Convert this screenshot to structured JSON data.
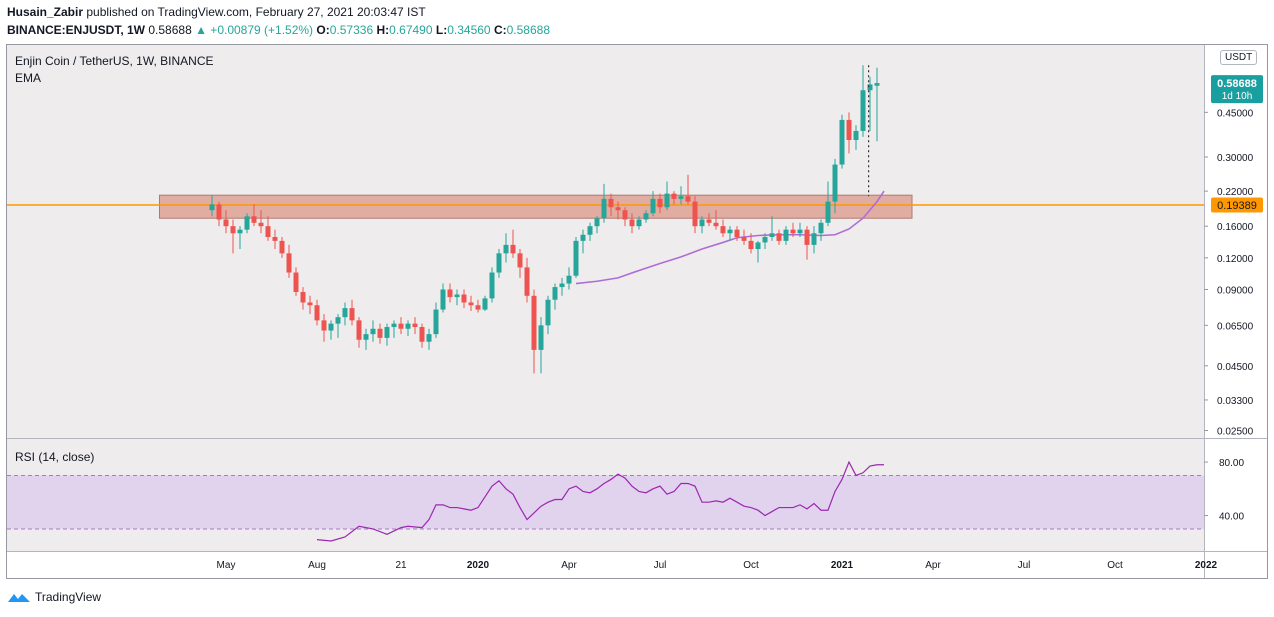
{
  "publisher": {
    "user": "Husain_Zabir",
    "text": "published on TradingView.com, February 27, 2021 20:03:47 IST"
  },
  "symbol_line": {
    "symbol": "BINANCE:ENJUSDT, 1W",
    "price": "0.58688",
    "change": "▲ +0.00879 (+1.52%)",
    "o_label": "O:",
    "o": "0.57336",
    "h_label": "H:",
    "h": "0.67490",
    "l_label": "L:",
    "l": "0.34560",
    "c_label": "C:",
    "c": "0.58688"
  },
  "legend": {
    "title": "Enjin Coin / TetherUS, 1W, BINANCE",
    "ema": "EMA",
    "rsi": "RSI (14, close)"
  },
  "currency_button": "USDT",
  "price_labels": {
    "last": "0.58688",
    "countdown": "1d 10h",
    "level": "0.19389"
  },
  "footer": {
    "brand": "TradingView"
  },
  "colors": {
    "up": "#26a69a",
    "down": "#ef5350",
    "ema": "#b06cd6",
    "rsi": "#9c27b0",
    "level": "#ff9800",
    "zone": "#d9826f",
    "rsi_band": "#e1d2ee",
    "last_price": "#1a9fa0"
  },
  "chart_data": {
    "type": "candlestick",
    "y_scale": "log",
    "ylim": [
      0.024,
      0.8
    ],
    "y_ticks": [
      {
        "value": 0.45,
        "label": "0.45000"
      },
      {
        "value": 0.3,
        "label": "0.30000"
      },
      {
        "value": 0.22,
        "label": "0.22000"
      },
      {
        "value": 0.16,
        "label": "0.16000"
      },
      {
        "value": 0.12,
        "label": "0.12000"
      },
      {
        "value": 0.09,
        "label": "0.09000"
      },
      {
        "value": 0.065,
        "label": "0.06500"
      },
      {
        "value": 0.045,
        "label": "0.04500"
      },
      {
        "value": 0.033,
        "label": "0.03300"
      },
      {
        "value": 0.025,
        "label": "0.02500"
      }
    ],
    "x_ticks": [
      {
        "week": 2,
        "label": "May"
      },
      {
        "week": 15,
        "label": "Aug"
      },
      {
        "week": 27,
        "label": "21"
      },
      {
        "week": 38,
        "label": "2020"
      },
      {
        "week": 51,
        "label": "Apr"
      },
      {
        "week": 64,
        "label": "Jul"
      },
      {
        "week": 77,
        "label": "Oct"
      },
      {
        "week": 90,
        "label": "2021"
      },
      {
        "week": 103,
        "label": "Apr"
      },
      {
        "week": 116,
        "label": "Jul"
      },
      {
        "week": 129,
        "label": "Oct"
      },
      {
        "week": 142,
        "label": "2022"
      }
    ],
    "horizontal_level": 0.19389,
    "zone": {
      "from_week": -7.5,
      "to_week": 100,
      "low": 0.172,
      "high": 0.212
    },
    "candles": [
      [
        0.185,
        0.212,
        0.175,
        0.195
      ],
      [
        0.195,
        0.2,
        0.16,
        0.17
      ],
      [
        0.17,
        0.185,
        0.15,
        0.16
      ],
      [
        0.16,
        0.17,
        0.125,
        0.15
      ],
      [
        0.15,
        0.16,
        0.13,
        0.155
      ],
      [
        0.155,
        0.18,
        0.15,
        0.175
      ],
      [
        0.175,
        0.195,
        0.16,
        0.165
      ],
      [
        0.165,
        0.185,
        0.15,
        0.16
      ],
      [
        0.16,
        0.175,
        0.14,
        0.145
      ],
      [
        0.145,
        0.155,
        0.13,
        0.14
      ],
      [
        0.14,
        0.145,
        0.12,
        0.125
      ],
      [
        0.125,
        0.135,
        0.1,
        0.105
      ],
      [
        0.105,
        0.11,
        0.085,
        0.088
      ],
      [
        0.088,
        0.092,
        0.075,
        0.08
      ],
      [
        0.08,
        0.085,
        0.072,
        0.078
      ],
      [
        0.078,
        0.082,
        0.065,
        0.068
      ],
      [
        0.068,
        0.072,
        0.056,
        0.062
      ],
      [
        0.062,
        0.068,
        0.057,
        0.066
      ],
      [
        0.066,
        0.072,
        0.058,
        0.07
      ],
      [
        0.07,
        0.08,
        0.065,
        0.076
      ],
      [
        0.076,
        0.082,
        0.065,
        0.068
      ],
      [
        0.068,
        0.07,
        0.053,
        0.057
      ],
      [
        0.057,
        0.063,
        0.052,
        0.06
      ],
      [
        0.06,
        0.068,
        0.056,
        0.063
      ],
      [
        0.063,
        0.066,
        0.055,
        0.058
      ],
      [
        0.058,
        0.066,
        0.054,
        0.064
      ],
      [
        0.064,
        0.068,
        0.058,
        0.066
      ],
      [
        0.066,
        0.07,
        0.06,
        0.063
      ],
      [
        0.063,
        0.068,
        0.059,
        0.066
      ],
      [
        0.066,
        0.07,
        0.06,
        0.064
      ],
      [
        0.064,
        0.066,
        0.053,
        0.056
      ],
      [
        0.056,
        0.063,
        0.052,
        0.06
      ],
      [
        0.06,
        0.08,
        0.058,
        0.075
      ],
      [
        0.075,
        0.095,
        0.073,
        0.09
      ],
      [
        0.09,
        0.095,
        0.08,
        0.084
      ],
      [
        0.084,
        0.09,
        0.078,
        0.086
      ],
      [
        0.086,
        0.09,
        0.076,
        0.08
      ],
      [
        0.08,
        0.085,
        0.074,
        0.078
      ],
      [
        0.078,
        0.082,
        0.073,
        0.075
      ],
      [
        0.075,
        0.085,
        0.074,
        0.083
      ],
      [
        0.083,
        0.11,
        0.08,
        0.105
      ],
      [
        0.105,
        0.13,
        0.1,
        0.125
      ],
      [
        0.125,
        0.15,
        0.115,
        0.135
      ],
      [
        0.135,
        0.155,
        0.12,
        0.125
      ],
      [
        0.125,
        0.13,
        0.1,
        0.11
      ],
      [
        0.11,
        0.12,
        0.08,
        0.085
      ],
      [
        0.085,
        0.09,
        0.042,
        0.052
      ],
      [
        0.052,
        0.07,
        0.042,
        0.065
      ],
      [
        0.065,
        0.085,
        0.06,
        0.082
      ],
      [
        0.082,
        0.095,
        0.075,
        0.092
      ],
      [
        0.092,
        0.1,
        0.085,
        0.095
      ],
      [
        0.095,
        0.11,
        0.09,
        0.102
      ],
      [
        0.102,
        0.145,
        0.1,
        0.14
      ],
      [
        0.14,
        0.155,
        0.125,
        0.148
      ],
      [
        0.148,
        0.165,
        0.14,
        0.16
      ],
      [
        0.16,
        0.175,
        0.15,
        0.172
      ],
      [
        0.172,
        0.235,
        0.165,
        0.205
      ],
      [
        0.205,
        0.215,
        0.175,
        0.19
      ],
      [
        0.19,
        0.2,
        0.17,
        0.185
      ],
      [
        0.185,
        0.19,
        0.16,
        0.17
      ],
      [
        0.17,
        0.18,
        0.15,
        0.16
      ],
      [
        0.16,
        0.175,
        0.155,
        0.17
      ],
      [
        0.17,
        0.185,
        0.165,
        0.18
      ],
      [
        0.18,
        0.22,
        0.175,
        0.205
      ],
      [
        0.205,
        0.215,
        0.18,
        0.19
      ],
      [
        0.19,
        0.24,
        0.185,
        0.215
      ],
      [
        0.215,
        0.22,
        0.195,
        0.205
      ],
      [
        0.205,
        0.23,
        0.195,
        0.21
      ],
      [
        0.21,
        0.255,
        0.195,
        0.2
      ],
      [
        0.2,
        0.21,
        0.15,
        0.16
      ],
      [
        0.16,
        0.175,
        0.15,
        0.17
      ],
      [
        0.17,
        0.18,
        0.16,
        0.165
      ],
      [
        0.165,
        0.185,
        0.155,
        0.16
      ],
      [
        0.16,
        0.17,
        0.145,
        0.15
      ],
      [
        0.15,
        0.16,
        0.14,
        0.155
      ],
      [
        0.155,
        0.16,
        0.14,
        0.145
      ],
      [
        0.145,
        0.155,
        0.135,
        0.14
      ],
      [
        0.14,
        0.15,
        0.125,
        0.13
      ],
      [
        0.13,
        0.14,
        0.115,
        0.138
      ],
      [
        0.138,
        0.15,
        0.13,
        0.145
      ],
      [
        0.145,
        0.175,
        0.14,
        0.15
      ],
      [
        0.15,
        0.155,
        0.135,
        0.14
      ],
      [
        0.14,
        0.16,
        0.135,
        0.155
      ],
      [
        0.155,
        0.165,
        0.145,
        0.15
      ],
      [
        0.15,
        0.165,
        0.145,
        0.155
      ],
      [
        0.155,
        0.16,
        0.118,
        0.135
      ],
      [
        0.135,
        0.16,
        0.125,
        0.15
      ],
      [
        0.15,
        0.17,
        0.14,
        0.165
      ],
      [
        0.165,
        0.24,
        0.16,
        0.2
      ],
      [
        0.2,
        0.295,
        0.18,
        0.28
      ],
      [
        0.28,
        0.44,
        0.27,
        0.42
      ],
      [
        0.42,
        0.45,
        0.31,
        0.35
      ],
      [
        0.35,
        0.4,
        0.32,
        0.38
      ],
      [
        0.38,
        0.69,
        0.36,
        0.55
      ],
      [
        0.55,
        0.62,
        0.38,
        0.58
      ],
      [
        0.573,
        0.675,
        0.346,
        0.587
      ]
    ],
    "ema_line": [
      [
        52,
        0.095
      ],
      [
        55,
        0.097
      ],
      [
        58,
        0.1
      ],
      [
        61,
        0.107
      ],
      [
        64,
        0.114
      ],
      [
        67,
        0.121
      ],
      [
        70,
        0.13
      ],
      [
        73,
        0.138
      ],
      [
        75,
        0.144
      ],
      [
        78,
        0.147
      ],
      [
        81,
        0.148
      ],
      [
        84,
        0.148
      ],
      [
        87,
        0.147
      ],
      [
        89,
        0.148
      ],
      [
        91,
        0.156
      ],
      [
        93,
        0.172
      ],
      [
        95,
        0.2
      ],
      [
        96,
        0.22
      ]
    ],
    "rsi": {
      "ylim": [
        15,
        95
      ],
      "ticks": [
        {
          "value": 80,
          "label": "80.00"
        },
        {
          "value": 40,
          "label": "40.00"
        }
      ],
      "band": [
        30,
        70
      ],
      "line": [
        [
          15,
          22
        ],
        [
          17,
          21
        ],
        [
          19,
          24
        ],
        [
          21,
          32
        ],
        [
          23,
          30
        ],
        [
          25,
          26
        ],
        [
          27,
          31
        ],
        [
          28,
          32
        ],
        [
          30,
          31
        ],
        [
          31,
          37
        ],
        [
          32,
          48
        ],
        [
          33,
          48
        ],
        [
          34,
          46
        ],
        [
          35,
          46
        ],
        [
          36,
          45
        ],
        [
          37,
          44
        ],
        [
          38,
          46
        ],
        [
          40,
          62
        ],
        [
          41,
          66
        ],
        [
          42,
          60
        ],
        [
          43,
          56
        ],
        [
          44,
          46
        ],
        [
          45,
          37
        ],
        [
          46,
          42
        ],
        [
          47,
          47
        ],
        [
          48,
          50
        ],
        [
          49,
          52
        ],
        [
          50,
          52
        ],
        [
          51,
          60
        ],
        [
          52,
          62
        ],
        [
          53,
          58
        ],
        [
          54,
          57
        ],
        [
          55,
          60
        ],
        [
          56,
          64
        ],
        [
          57,
          67
        ],
        [
          58,
          71
        ],
        [
          59,
          68
        ],
        [
          60,
          62
        ],
        [
          61,
          58
        ],
        [
          62,
          57
        ],
        [
          63,
          60
        ],
        [
          64,
          62
        ],
        [
          65,
          56
        ],
        [
          66,
          58
        ],
        [
          67,
          64
        ],
        [
          68,
          64
        ],
        [
          69,
          62
        ],
        [
          70,
          50
        ],
        [
          71,
          50
        ],
        [
          72,
          51
        ],
        [
          73,
          50
        ],
        [
          74,
          53
        ],
        [
          75,
          50
        ],
        [
          76,
          47
        ],
        [
          77,
          46
        ],
        [
          78,
          44
        ],
        [
          79,
          40
        ],
        [
          80,
          43
        ],
        [
          81,
          46
        ],
        [
          82,
          46
        ],
        [
          83,
          46
        ],
        [
          84,
          48
        ],
        [
          85,
          45
        ],
        [
          86,
          49
        ],
        [
          87,
          44
        ],
        [
          88,
          44
        ],
        [
          89,
          58
        ],
        [
          90,
          67
        ],
        [
          91,
          80
        ],
        [
          92,
          70
        ],
        [
          93,
          72
        ],
        [
          94,
          77
        ],
        [
          95,
          78
        ],
        [
          96,
          78
        ]
      ]
    }
  }
}
